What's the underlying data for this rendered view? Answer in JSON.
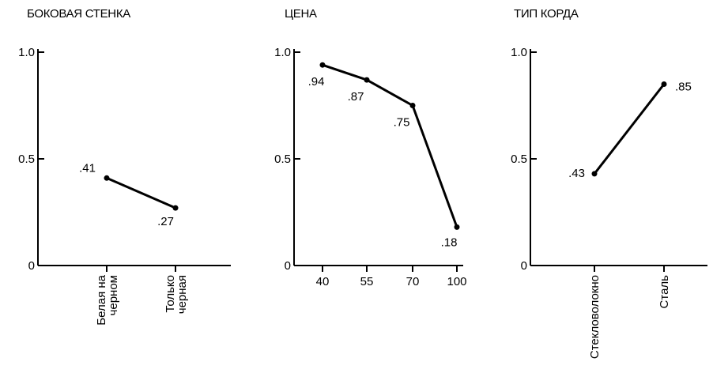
{
  "chart_data": [
    {
      "type": "line",
      "title": "БОКОВАЯ СТЕНКА",
      "xlabel": "",
      "ylabel": "",
      "ylim": [
        0,
        1.0
      ],
      "y_ticks": [
        0,
        0.5,
        1.0
      ],
      "y_tick_labels": [
        "0",
        "0.5",
        "1.0"
      ],
      "categories": [
        "Белая на черном",
        "Только черная"
      ],
      "category_label_lines": [
        [
          "Белая на",
          "черном"
        ],
        [
          "Только",
          "черная"
        ]
      ],
      "values": [
        0.41,
        0.27
      ],
      "data_labels": [
        ".41",
        ".27"
      ]
    },
    {
      "type": "line",
      "title": "ЦЕНА",
      "xlabel": "",
      "ylabel": "",
      "ylim": [
        0,
        1.0
      ],
      "y_ticks": [
        0,
        0.5,
        1.0
      ],
      "y_tick_labels": [
        "0",
        "0.5",
        "1.0"
      ],
      "categories": [
        "40",
        "55",
        "70",
        "100"
      ],
      "values": [
        0.94,
        0.87,
        0.75,
        0.18
      ],
      "data_labels": [
        ".94",
        ".87",
        ".75",
        ".18"
      ]
    },
    {
      "type": "line",
      "title": "ТИП КОРДА",
      "xlabel": "",
      "ylabel": "",
      "ylim": [
        0,
        1.0
      ],
      "y_ticks": [
        0,
        0.5,
        1.0
      ],
      "y_tick_labels": [
        "0",
        "0.5",
        "1.0"
      ],
      "categories": [
        "Стекловолокно",
        "Сталь"
      ],
      "category_label_lines": [
        [
          "Стекловолокно"
        ],
        [
          "Сталь"
        ]
      ],
      "values": [
        0.43,
        0.85
      ],
      "data_labels": [
        ".43",
        ".85"
      ]
    }
  ]
}
